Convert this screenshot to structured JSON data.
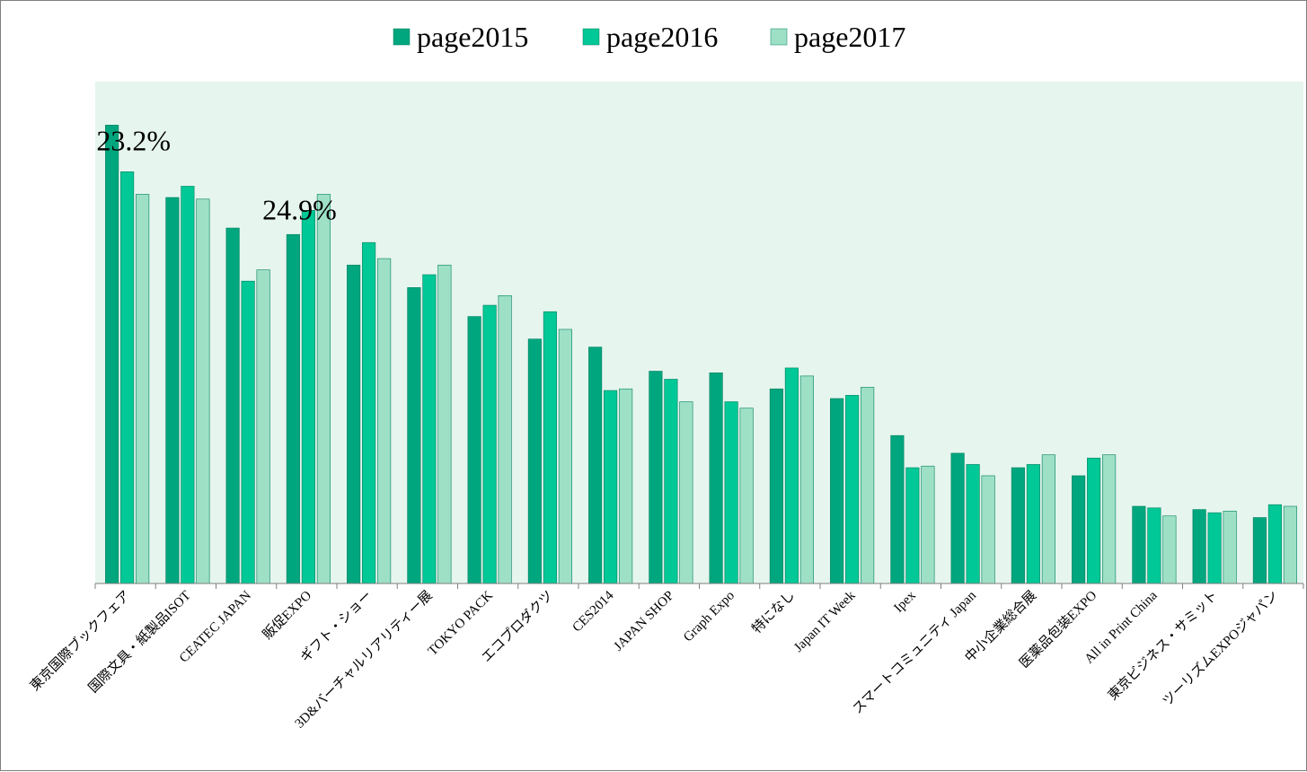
{
  "chart_data": {
    "type": "bar",
    "title": "",
    "xlabel": "",
    "ylabel": "",
    "ylim": [
      0,
      31.2
    ],
    "grid": false,
    "legend": "top-center",
    "plot_background": "#e6f5ee",
    "categories": [
      "東京国際ブックフェア",
      "国際文具・紙製品ISOT",
      "CEATEC JAPAN",
      "販促EXPO",
      "ギフト・ショー",
      "3D&バーチャルリアリティー展",
      "TOKYO PACK",
      "エコプロダクツ",
      "CES2014",
      "JAPAN SHOP",
      "Graph Expo",
      "特になし",
      "Japan IT Week",
      "Ipex",
      "スマートコミュニティ Japan",
      "中小企業総合展",
      "医薬品包装EXPO",
      "All in Print China",
      "東京ビジネス・サミット",
      "ツーリズムEXPOジャパン"
    ],
    "series": [
      {
        "name": "page2015",
        "color": "#00a67e",
        "values": [
          28.5,
          24.0,
          22.1,
          21.7,
          19.8,
          18.4,
          16.6,
          15.2,
          14.7,
          13.2,
          13.1,
          12.1,
          11.5,
          9.2,
          8.1,
          7.2,
          6.7,
          4.8,
          4.6,
          4.1
        ]
      },
      {
        "name": "page2016",
        "color": "#00c896",
        "values": [
          25.6,
          24.7,
          18.8,
          23.2,
          21.2,
          19.2,
          17.3,
          16.9,
          12.0,
          12.7,
          11.3,
          13.4,
          11.7,
          7.2,
          7.4,
          7.4,
          7.8,
          4.7,
          4.4,
          4.9
        ]
      },
      {
        "name": "page2017",
        "color": "#9ee0c6",
        "values": [
          24.2,
          23.9,
          19.5,
          24.2,
          20.2,
          19.8,
          17.9,
          15.8,
          12.1,
          11.3,
          10.9,
          12.9,
          12.2,
          7.3,
          6.7,
          8.0,
          8.0,
          4.2,
          4.5,
          4.8
        ]
      }
    ],
    "annotations": [
      {
        "text": "23.2%",
        "category_index": 0
      },
      {
        "text": "24.9%",
        "category_index": 3
      }
    ]
  }
}
